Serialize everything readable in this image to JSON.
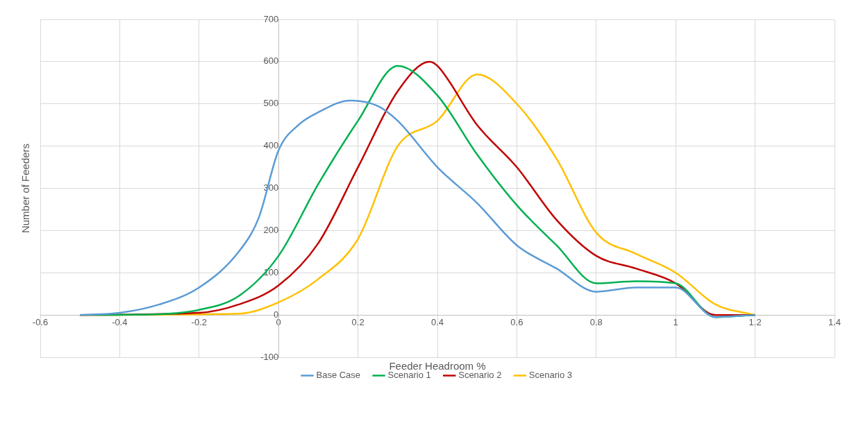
{
  "chart_data": {
    "type": "line",
    "xlabel": "Feeder Headroom %",
    "ylabel": "Number of Feeders",
    "xlim": [
      -0.6,
      1.4
    ],
    "xticks": [
      -0.6,
      -0.4,
      -0.2,
      0,
      0.2,
      0.4,
      0.6,
      0.8,
      1,
      1.2,
      1.4
    ],
    "ylim": [
      -100,
      700
    ],
    "yticks": [
      -100,
      0,
      100,
      200,
      300,
      400,
      500,
      600,
      700
    ],
    "grid": true,
    "legend": "bottom",
    "marker": "none",
    "line_style": "solid",
    "series": [
      {
        "name": "Base Case",
        "color": "#5b9bd5",
        "x": [
          -0.5,
          -0.4,
          -0.3,
          -0.2,
          -0.1,
          -0.05,
          0,
          0.05,
          0.1,
          0.18,
          0.25,
          0.3,
          0.4,
          0.5,
          0.6,
          0.7,
          0.8,
          0.9,
          1,
          1.1,
          1.2
        ],
        "values": [
          0,
          5,
          25,
          65,
          150,
          230,
          390,
          450,
          480,
          508,
          495,
          460,
          350,
          265,
          165,
          110,
          55,
          65,
          65,
          -5,
          0
        ]
      },
      {
        "name": "Scenario 1",
        "color": "#00b050",
        "x": [
          -0.5,
          -0.3,
          -0.2,
          -0.1,
          0,
          0.1,
          0.2,
          0.3,
          0.4,
          0.5,
          0.6,
          0.7,
          0.8,
          0.9,
          1,
          1.1,
          1.2
        ],
        "values": [
          0,
          2,
          12,
          45,
          140,
          310,
          460,
          590,
          520,
          380,
          260,
          165,
          75,
          80,
          75,
          -5,
          0
        ]
      },
      {
        "name": "Scenario 2",
        "color": "#c00000",
        "x": [
          -0.5,
          -0.2,
          -0.1,
          0,
          0.1,
          0.2,
          0.3,
          0.38,
          0.4,
          0.5,
          0.6,
          0.7,
          0.8,
          0.9,
          1,
          1.1,
          1.2
        ],
        "values": [
          0,
          5,
          25,
          70,
          170,
          350,
          530,
          600,
          590,
          450,
          350,
          225,
          140,
          110,
          75,
          0,
          0
        ]
      },
      {
        "name": "Scenario 3",
        "color": "#ffc000",
        "x": [
          -0.5,
          -0.1,
          0,
          0.1,
          0.2,
          0.3,
          0.4,
          0.5,
          0.6,
          0.7,
          0.8,
          0.9,
          1,
          1.1,
          1.2
        ],
        "values": [
          0,
          3,
          30,
          85,
          180,
          400,
          460,
          570,
          500,
          370,
          195,
          145,
          100,
          25,
          0
        ]
      }
    ]
  }
}
